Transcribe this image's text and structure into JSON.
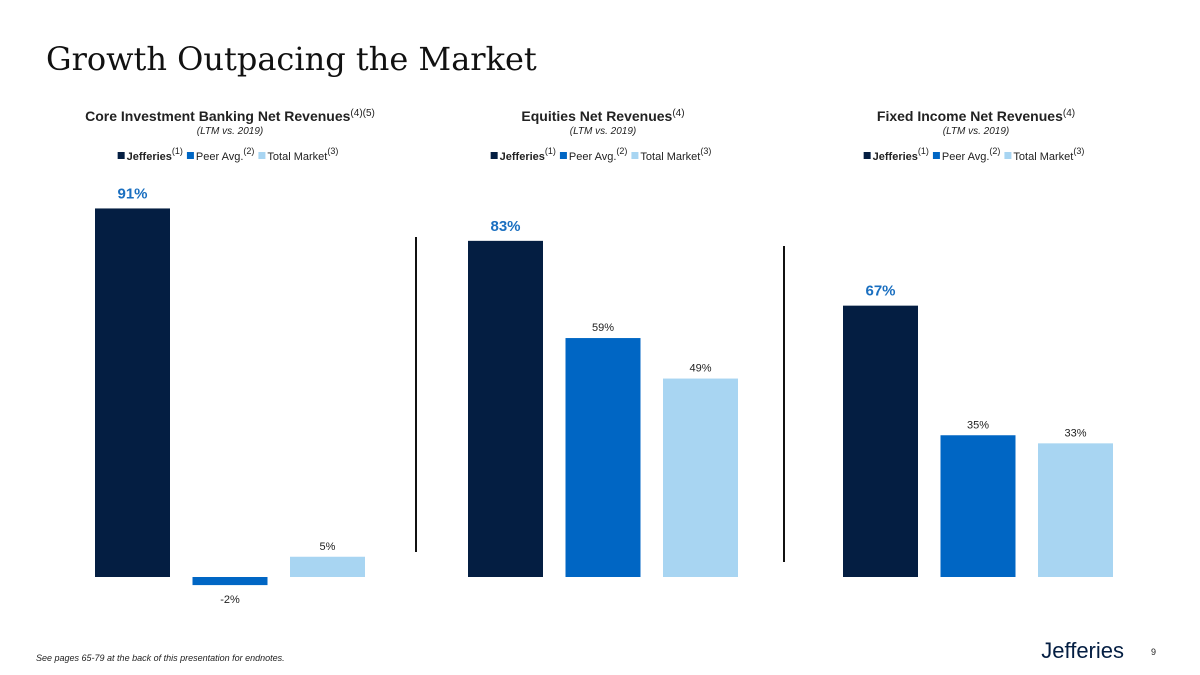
{
  "page": {
    "title": "Growth Outpacing the Market",
    "footnote": "See pages 65-79 at the back of this presentation for endnotes.",
    "logo": "Jefferies",
    "page_number": "9"
  },
  "chart_data": [
    {
      "type": "bar",
      "title": "Core Investment Banking Net Revenues",
      "title_note": "(4)(5)",
      "subtitle": "(LTM vs. 2019)",
      "categories": [
        "Jefferies",
        "Peer Avg.",
        "Total Market"
      ],
      "category_notes": [
        "(1)",
        "(2)",
        "(3)"
      ],
      "values": [
        91,
        -2,
        5
      ],
      "value_labels": [
        "91%",
        "-2%",
        "5%"
      ],
      "colors": [
        "#041e42",
        "#0066c4",
        "#a8d5f2"
      ]
    },
    {
      "type": "bar",
      "title": "Equities Net Revenues",
      "title_note": "(4)",
      "subtitle": "(LTM vs. 2019)",
      "categories": [
        "Jefferies",
        "Peer Avg.",
        "Total Market"
      ],
      "category_notes": [
        "(1)",
        "(2)",
        "(3)"
      ],
      "values": [
        83,
        59,
        49
      ],
      "value_labels": [
        "83%",
        "59%",
        "49%"
      ],
      "colors": [
        "#041e42",
        "#0066c4",
        "#a8d5f2"
      ]
    },
    {
      "type": "bar",
      "title": "Fixed Income Net Revenues",
      "title_note": "(4)",
      "subtitle": "(LTM vs. 2019)",
      "categories": [
        "Jefferies",
        "Peer Avg.",
        "Total Market"
      ],
      "category_notes": [
        "(1)",
        "(2)",
        "(3)"
      ],
      "values": [
        67,
        35,
        33
      ],
      "value_labels": [
        "67%",
        "35%",
        "33%"
      ],
      "colors": [
        "#041e42",
        "#0066c4",
        "#a8d5f2"
      ]
    }
  ]
}
